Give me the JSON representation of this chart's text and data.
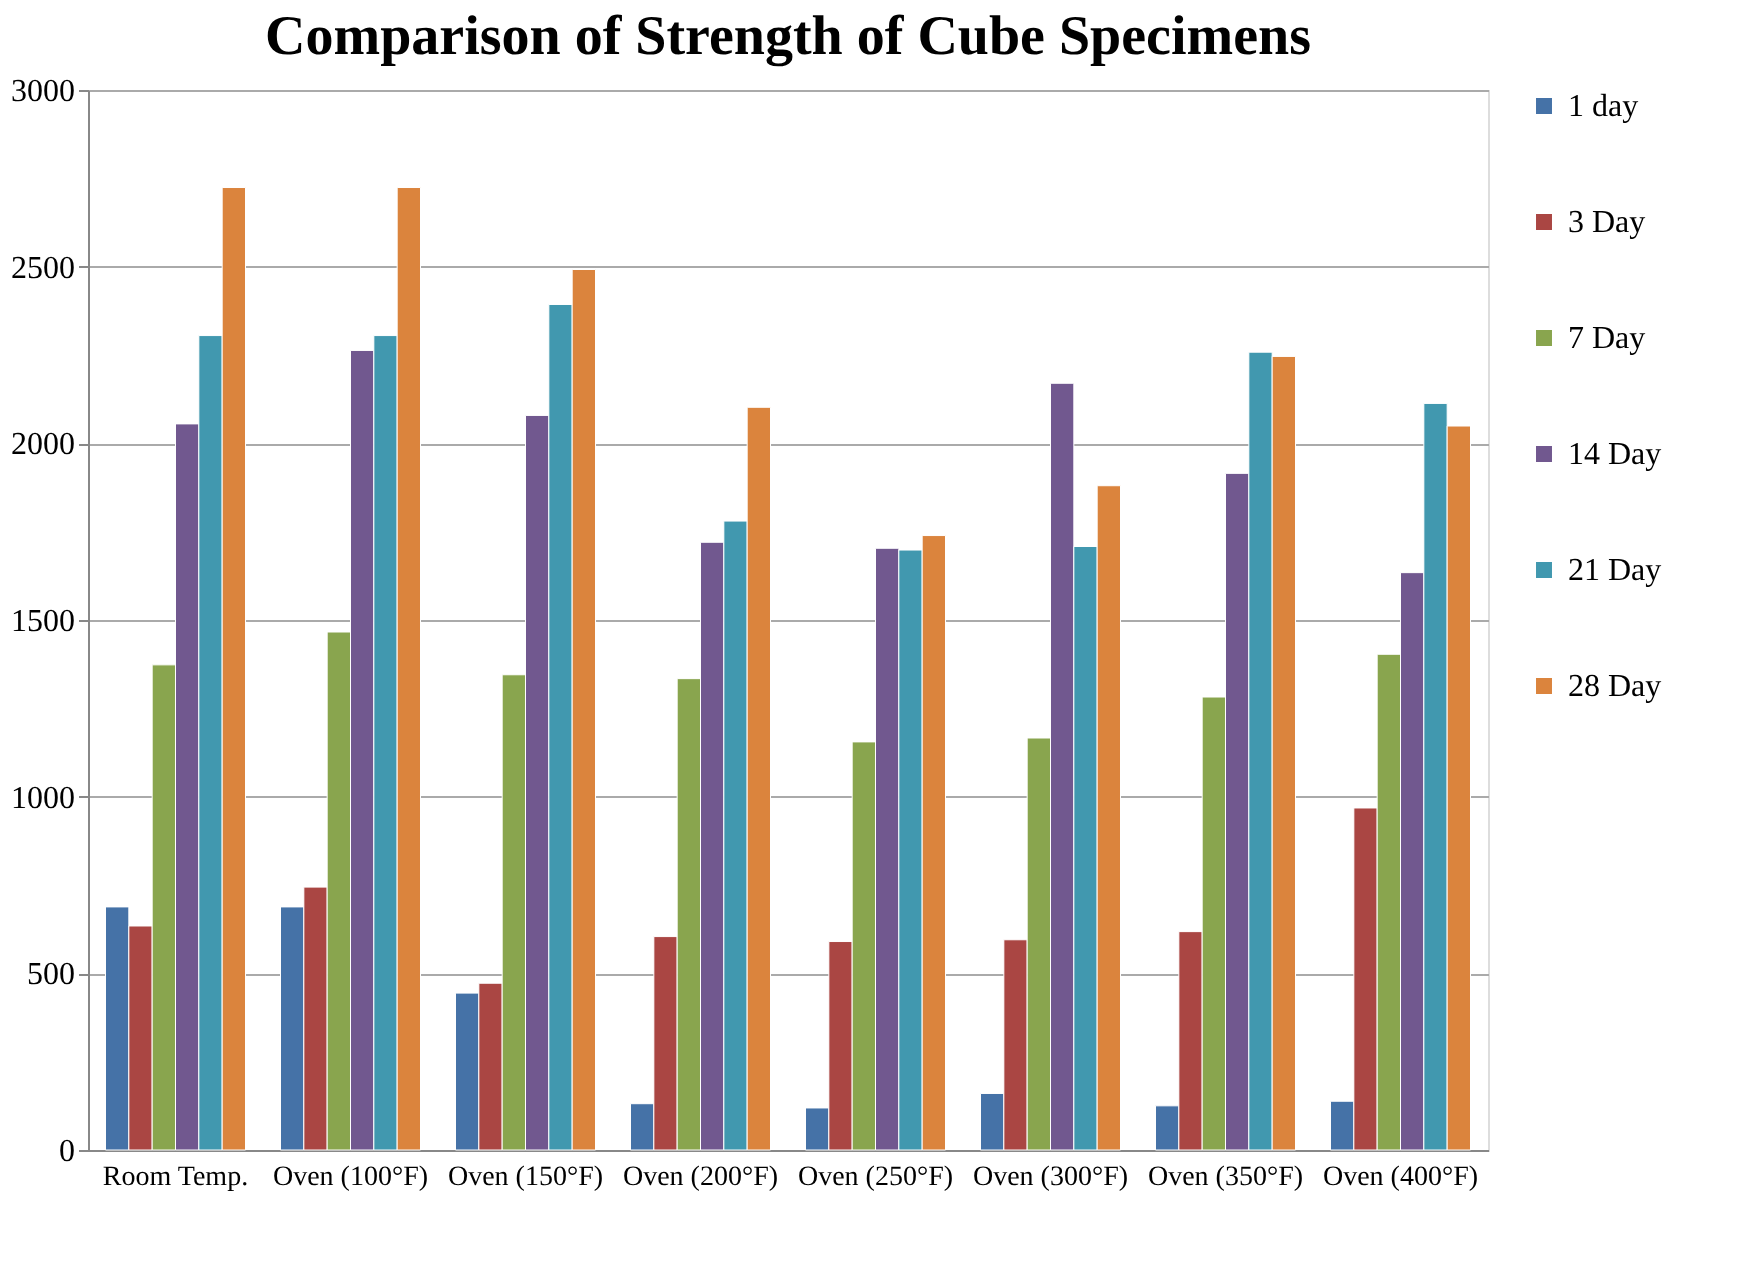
{
  "chart_data": {
    "type": "bar",
    "title": "Comparison of Strength of Cube Specimens",
    "categories": [
      "Room Temp.",
      "Oven (100°F)",
      "Oven (150°F)",
      "Oven (200°F)",
      "Oven (250°F)",
      "Oven (300°F)",
      "Oven (350°F)",
      "Oven (400°F)"
    ],
    "series": [
      {
        "name": "1 day",
        "color": "#4572a7",
        "values": [
          688,
          688,
          444,
          131,
          119,
          160,
          125,
          138
        ]
      },
      {
        "name": "3 Day",
        "color": "#aa4643",
        "values": [
          634,
          744,
          472,
          604,
          590,
          595,
          618,
          968
        ]
      },
      {
        "name": "7 Day",
        "color": "#89a54e",
        "values": [
          1373,
          1466,
          1345,
          1334,
          1155,
          1166,
          1282,
          1403
        ]
      },
      {
        "name": "14 Day",
        "color": "#71588f",
        "values": [
          2055,
          2263,
          2079,
          1720,
          1703,
          2170,
          1915,
          1634
        ]
      },
      {
        "name": "21 Day",
        "color": "#4198af",
        "values": [
          2305,
          2305,
          2393,
          1780,
          1698,
          1708,
          2258,
          2113
        ]
      },
      {
        "name": "28 Day",
        "color": "#db843d",
        "values": [
          2724,
          2724,
          2492,
          2102,
          1739,
          1880,
          2246,
          2049
        ]
      }
    ],
    "ylim": [
      0,
      3000
    ],
    "yticks": [
      0,
      500,
      1000,
      1500,
      2000,
      2500,
      3000
    ],
    "grid": "y",
    "legend": "right"
  }
}
